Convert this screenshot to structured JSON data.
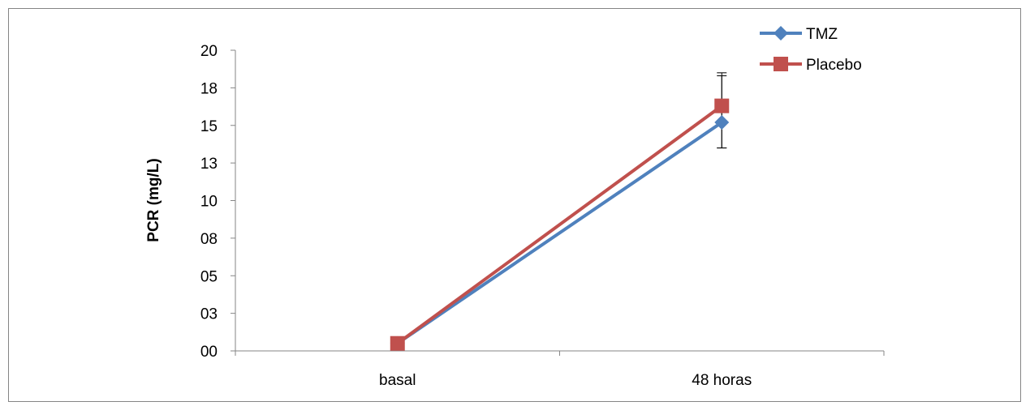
{
  "chart_data": {
    "type": "line",
    "title": "",
    "xlabel": "",
    "ylabel": "PCR  (mg/L)",
    "categories": [
      "basal",
      "48 horas"
    ],
    "y_tick_labels": [
      "00",
      "03",
      "05",
      "08",
      "10",
      "13",
      "15",
      "18",
      "20"
    ],
    "ylim": [
      0,
      20
    ],
    "grid": false,
    "legend_position": "top-right",
    "series": [
      {
        "name": "TMZ",
        "values": [
          0.5,
          15.2
        ],
        "error_low": [
          0,
          1.7
        ],
        "error_high": [
          0,
          3.1
        ],
        "color": "#4F81BD",
        "marker": "diamond"
      },
      {
        "name": "Placebo",
        "values": [
          0.5,
          16.3
        ],
        "error_low": [
          0,
          2.8
        ],
        "error_high": [
          0,
          2.2
        ],
        "color": "#C0504D",
        "marker": "square"
      }
    ]
  }
}
